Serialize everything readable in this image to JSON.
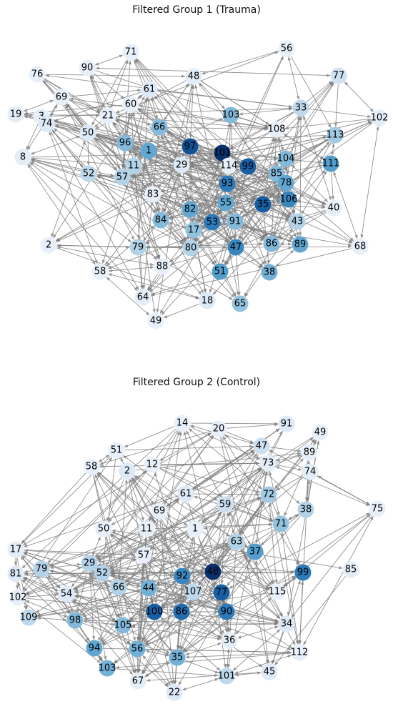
{
  "graphs": [
    {
      "title": "Filtered Group 1 (Trauma)",
      "nodes": [
        {
          "id": "71",
          "level": 0.05
        },
        {
          "id": "56",
          "level": 0.05
        },
        {
          "id": "90",
          "level": 0.05
        },
        {
          "id": "76",
          "level": 0.05
        },
        {
          "id": "48",
          "level": 0.08
        },
        {
          "id": "77",
          "level": 0.18
        },
        {
          "id": "69",
          "level": 0.05
        },
        {
          "id": "61",
          "level": 0.12
        },
        {
          "id": "60",
          "level": 0.05
        },
        {
          "id": "19",
          "level": 0.08
        },
        {
          "id": "3",
          "level": 0.05
        },
        {
          "id": "21",
          "level": 0.05
        },
        {
          "id": "103",
          "level": 0.45
        },
        {
          "id": "33",
          "level": 0.25
        },
        {
          "id": "102",
          "level": 0.08
        },
        {
          "id": "74",
          "level": 0.12
        },
        {
          "id": "50",
          "level": 0.12
        },
        {
          "id": "66",
          "level": 0.45
        },
        {
          "id": "108",
          "level": 0.05
        },
        {
          "id": "113",
          "level": 0.35
        },
        {
          "id": "8",
          "level": 0.08
        },
        {
          "id": "96",
          "level": 0.45
        },
        {
          "id": "97",
          "level": 0.9
        },
        {
          "id": "101",
          "level": 1.0
        },
        {
          "id": "1",
          "level": 0.55
        },
        {
          "id": "99",
          "level": 0.85
        },
        {
          "id": "104",
          "level": 0.45
        },
        {
          "id": "111",
          "level": 0.6
        },
        {
          "id": "52",
          "level": 0.25
        },
        {
          "id": "11",
          "level": 0.3
        },
        {
          "id": "57",
          "level": 0.3
        },
        {
          "id": "29",
          "level": 0.12
        },
        {
          "id": "114",
          "level": 0.05
        },
        {
          "id": "85",
          "level": 0.45
        },
        {
          "id": "78",
          "level": 0.55
        },
        {
          "id": "93",
          "level": 0.75
        },
        {
          "id": "83",
          "level": 0.05
        },
        {
          "id": "106",
          "level": 0.7
        },
        {
          "id": "55",
          "level": 0.55
        },
        {
          "id": "35",
          "level": 0.85
        },
        {
          "id": "40",
          "level": 0.05
        },
        {
          "id": "82",
          "level": 0.55
        },
        {
          "id": "84",
          "level": 0.45
        },
        {
          "id": "53",
          "level": 0.75
        },
        {
          "id": "91",
          "level": 0.45
        },
        {
          "id": "43",
          "level": 0.3
        },
        {
          "id": "17",
          "level": 0.4
        },
        {
          "id": "2",
          "level": 0.05
        },
        {
          "id": "79",
          "level": 0.3
        },
        {
          "id": "80",
          "level": 0.3
        },
        {
          "id": "47",
          "level": 0.7
        },
        {
          "id": "86",
          "level": 0.45
        },
        {
          "id": "89",
          "level": 0.55
        },
        {
          "id": "68",
          "level": 0.05
        },
        {
          "id": "88",
          "level": 0.05
        },
        {
          "id": "58",
          "level": 0.05
        },
        {
          "id": "51",
          "level": 0.6
        },
        {
          "id": "38",
          "level": 0.5
        },
        {
          "id": "64",
          "level": 0.08
        },
        {
          "id": "18",
          "level": 0.12
        },
        {
          "id": "65",
          "level": 0.4
        },
        {
          "id": "49",
          "level": 0.05
        }
      ]
    },
    {
      "title": "Filtered Group 2 (Control)",
      "nodes": [
        {
          "id": "14",
          "level": 0.05
        },
        {
          "id": "20",
          "level": 0.05
        },
        {
          "id": "91",
          "level": 0.12
        },
        {
          "id": "49",
          "level": 0.05
        },
        {
          "id": "51",
          "level": 0.05
        },
        {
          "id": "47",
          "level": 0.2
        },
        {
          "id": "58",
          "level": 0.05
        },
        {
          "id": "2",
          "level": 0.12
        },
        {
          "id": "12",
          "level": 0.05
        },
        {
          "id": "89",
          "level": 0.05
        },
        {
          "id": "73",
          "level": 0.08
        },
        {
          "id": "74",
          "level": 0.08
        },
        {
          "id": "61",
          "level": 0.12
        },
        {
          "id": "72",
          "level": 0.35
        },
        {
          "id": "75",
          "level": 0.05
        },
        {
          "id": "69",
          "level": 0.05
        },
        {
          "id": "59",
          "level": 0.2
        },
        {
          "id": "38",
          "level": 0.3
        },
        {
          "id": "50",
          "level": 0.05
        },
        {
          "id": "11",
          "level": 0.05
        },
        {
          "id": "1",
          "level": 0.05
        },
        {
          "id": "71",
          "level": 0.4
        },
        {
          "id": "63",
          "level": 0.3
        },
        {
          "id": "37",
          "level": 0.6
        },
        {
          "id": "17",
          "level": 0.08
        },
        {
          "id": "57",
          "level": 0.05
        },
        {
          "id": "79",
          "level": 0.3
        },
        {
          "id": "29",
          "level": 0.3
        },
        {
          "id": "52",
          "level": 0.3
        },
        {
          "id": "48",
          "level": 1.0
        },
        {
          "id": "99",
          "level": 0.75
        },
        {
          "id": "85",
          "level": 0.08
        },
        {
          "id": "81",
          "level": 0.12
        },
        {
          "id": "92",
          "level": 0.7
        },
        {
          "id": "66",
          "level": 0.3
        },
        {
          "id": "44",
          "level": 0.5
        },
        {
          "id": "107",
          "level": 0.25
        },
        {
          "id": "77",
          "level": 0.85
        },
        {
          "id": "115",
          "level": 0.05
        },
        {
          "id": "102",
          "level": 0.05
        },
        {
          "id": "54",
          "level": 0.12
        },
        {
          "id": "100",
          "level": 0.85
        },
        {
          "id": "86",
          "level": 0.8
        },
        {
          "id": "90",
          "level": 0.75
        },
        {
          "id": "109",
          "level": 0.25
        },
        {
          "id": "98",
          "level": 0.45
        },
        {
          "id": "105",
          "level": 0.45
        },
        {
          "id": "34",
          "level": 0.12
        },
        {
          "id": "36",
          "level": 0.08
        },
        {
          "id": "94",
          "level": 0.55
        },
        {
          "id": "56",
          "level": 0.5
        },
        {
          "id": "112",
          "level": 0.05
        },
        {
          "id": "103",
          "level": 0.5
        },
        {
          "id": "35",
          "level": 0.5
        },
        {
          "id": "101",
          "level": 0.25
        },
        {
          "id": "45",
          "level": 0.12
        },
        {
          "id": "67",
          "level": 0.08
        },
        {
          "id": "22",
          "level": 0.12
        }
      ]
    }
  ],
  "colors": {
    "edge": "#808080",
    "scale_light": "#eef4fb",
    "scale_dark": "#08306b"
  }
}
